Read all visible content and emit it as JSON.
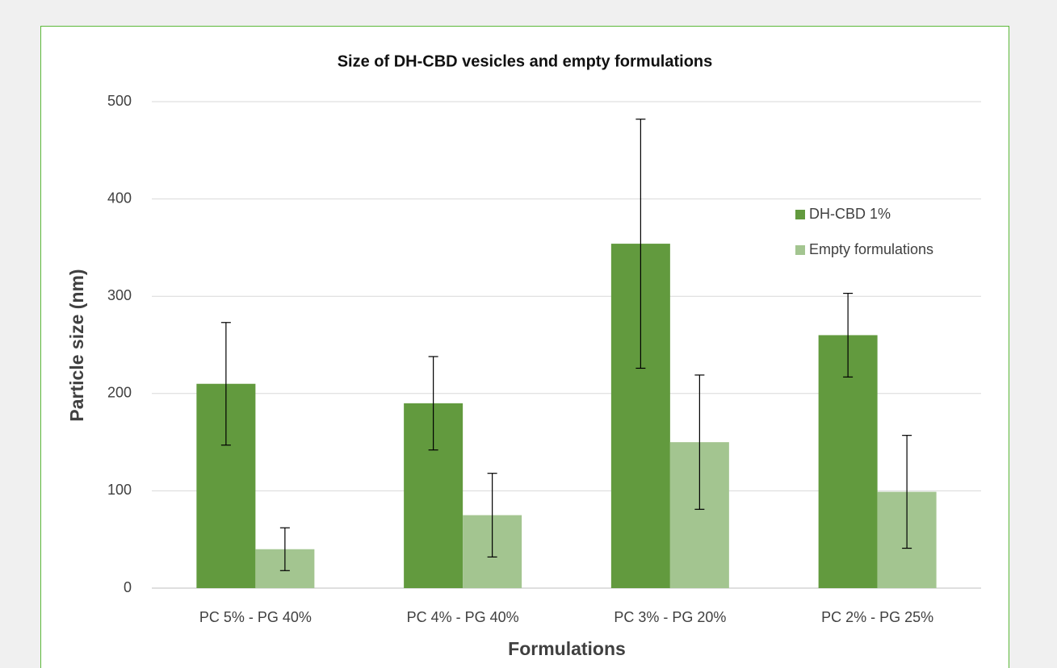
{
  "chart_data": {
    "type": "bar",
    "title": "Size of DH-CBD vesicles and empty formulations",
    "x_label": "Formulations",
    "y_label": "Particle size (nm)",
    "categories": [
      "PC 5% - PG 40%",
      "PC 4% - PG 40%",
      "PC 3% - PG 20%",
      "PC 2% - PG 25%"
    ],
    "series": [
      {
        "name": "DH-CBD 1%",
        "color": "#629a3e",
        "values": [
          210,
          190,
          354,
          260
        ],
        "errors": [
          63,
          48,
          128,
          43
        ]
      },
      {
        "name": "Empty formulations",
        "color": "#a3c590",
        "values": [
          40,
          75,
          150,
          99
        ],
        "errors": [
          22,
          43,
          69,
          58
        ]
      }
    ],
    "ylim": [
      0,
      500
    ],
    "yticks": [
      0,
      100,
      200,
      300,
      400,
      500
    ],
    "grid": true,
    "legend": "right"
  }
}
